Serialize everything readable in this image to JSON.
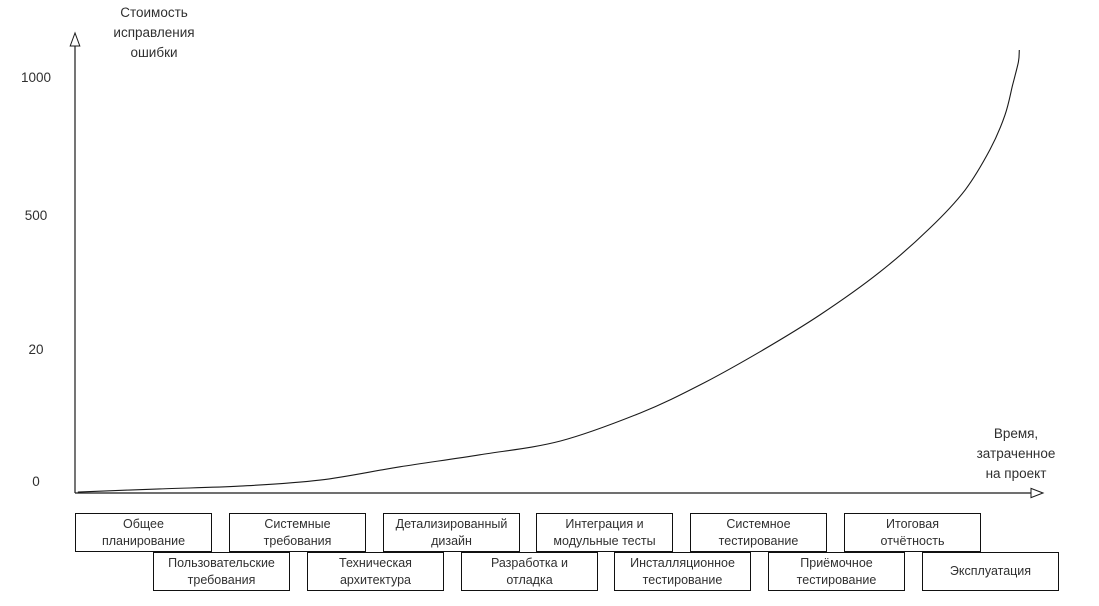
{
  "figure": {
    "background": "#ffffff",
    "line_color": "#1a1a1a",
    "text_color": "#303030"
  },
  "y_axis": {
    "title_lines": [
      "Стоимость",
      "исправления",
      "ошибки"
    ],
    "ticks": [
      {
        "label": "1000",
        "pos": 0.902
      },
      {
        "label": "500",
        "pos": 0.602
      },
      {
        "label": "20",
        "pos": 0.311
      },
      {
        "label": "0",
        "pos": 0.024
      }
    ]
  },
  "x_axis": {
    "title_lines": [
      "Время,",
      "затраченное",
      "на проект"
    ]
  },
  "phases": {
    "row1": [
      {
        "lines": [
          "Общее",
          "планирование"
        ]
      },
      {
        "lines": [
          "Системные",
          "требования"
        ]
      },
      {
        "lines": [
          "Детализированный",
          "дизайн"
        ]
      },
      {
        "lines": [
          "Интеграция и",
          "модульные тесты"
        ]
      },
      {
        "lines": [
          "Системное",
          "тестирование"
        ]
      },
      {
        "lines": [
          "Итоговая",
          "отчётность"
        ]
      }
    ],
    "row2": [
      {
        "lines": [
          "Пользовательские",
          "требования"
        ]
      },
      {
        "lines": [
          "Техническая",
          "архитектура"
        ]
      },
      {
        "lines": [
          "Разработка и",
          "отладка"
        ]
      },
      {
        "lines": [
          "Инсталляционное",
          "тестирование"
        ]
      },
      {
        "lines": [
          "Приёмочное",
          "тестирование"
        ]
      },
      {
        "lines": [
          "Эксплуатация"
        ]
      }
    ]
  },
  "chart_data": {
    "type": "line",
    "title": "",
    "ylabel": "Стоимость исправления ошибки",
    "xlabel": "Время, затраченное на проект",
    "y_ticks": [
      "0",
      "20",
      "500",
      "1000"
    ],
    "y_scale": "nonlinear-illustrative",
    "legend": "none",
    "grid": false,
    "series": [
      {
        "name": "Стоимость исправления ошибки",
        "points_normalized": [
          [
            0.003,
            0.002
          ],
          [
            0.089,
            0.009
          ],
          [
            0.174,
            0.015
          ],
          [
            0.258,
            0.028
          ],
          [
            0.342,
            0.057
          ],
          [
            0.426,
            0.083
          ],
          [
            0.511,
            0.113
          ],
          [
            0.595,
            0.174
          ],
          [
            0.658,
            0.235
          ],
          [
            0.721,
            0.307
          ],
          [
            0.784,
            0.387
          ],
          [
            0.847,
            0.48
          ],
          [
            0.9,
            0.576
          ],
          [
            0.937,
            0.659
          ],
          [
            0.963,
            0.746
          ],
          [
            0.979,
            0.822
          ],
          [
            0.987,
            0.887
          ],
          [
            0.993,
            0.937
          ],
          [
            0.994,
            0.963
          ]
        ]
      }
    ],
    "x_phases_row1": [
      "Общее планирование",
      "Системные требования",
      "Детализированный дизайн",
      "Интеграция и модульные тесты",
      "Системное тестирование",
      "Итоговая отчётность"
    ],
    "x_phases_row2": [
      "Пользовательские требования",
      "Техническая архитектура",
      "Разработка и отладка",
      "Инсталляционное тестирование",
      "Приёмочное тестирование",
      "Эксплуатация"
    ]
  }
}
